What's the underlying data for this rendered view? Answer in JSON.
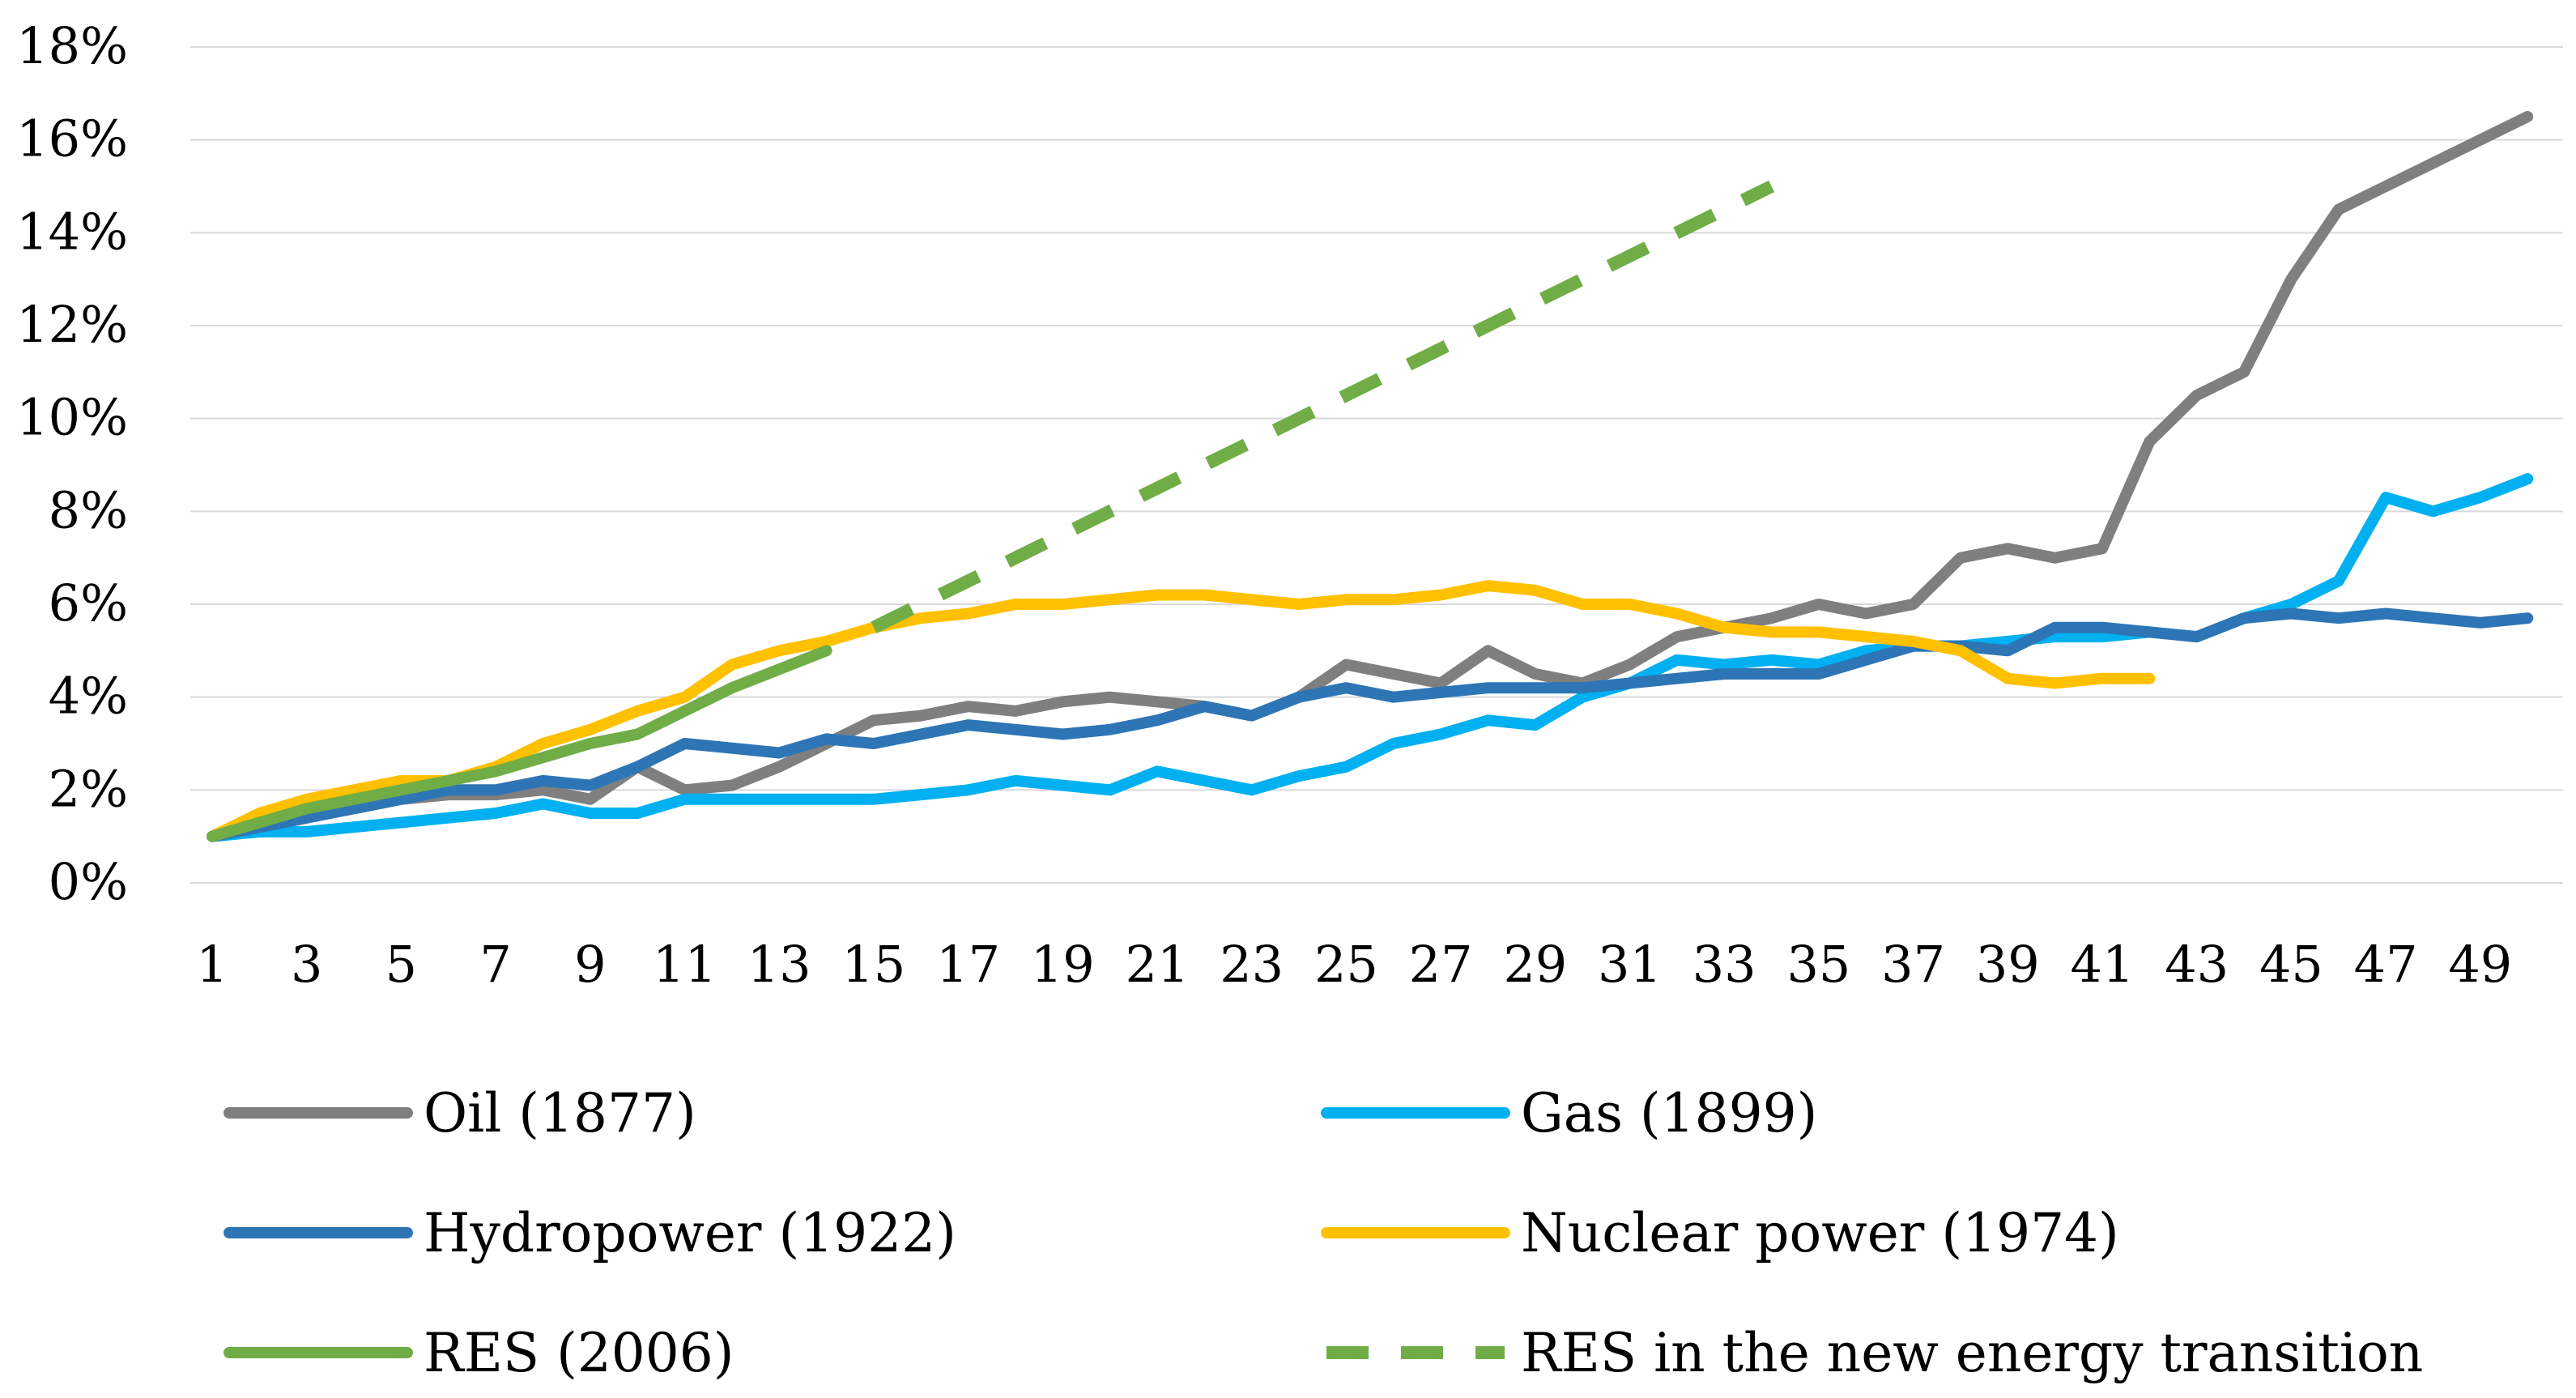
{
  "chart_data": {
    "type": "line",
    "title": "",
    "xlabel": "",
    "ylabel": "",
    "x": [
      1,
      2,
      3,
      4,
      5,
      6,
      7,
      8,
      9,
      10,
      11,
      12,
      13,
      14,
      15,
      16,
      17,
      18,
      19,
      20,
      21,
      22,
      23,
      24,
      25,
      26,
      27,
      28,
      29,
      30,
      31,
      32,
      33,
      34,
      35,
      36,
      37,
      38,
      39,
      40,
      41,
      42,
      43,
      44,
      45,
      46,
      47,
      48,
      49,
      50
    ],
    "x_tick_labels": [
      "1",
      "3",
      "5",
      "7",
      "9",
      "11",
      "13",
      "15",
      "17",
      "19",
      "21",
      "23",
      "25",
      "27",
      "29",
      "31",
      "33",
      "35",
      "37",
      "39",
      "41",
      "43",
      "45",
      "47",
      "49"
    ],
    "y_tick_labels": [
      "0%",
      "2%",
      "4%",
      "6%",
      "8%",
      "10%",
      "12%",
      "14%",
      "16%",
      "18%"
    ],
    "ylim": [
      0,
      18
    ],
    "y_unit": "%",
    "grid": true,
    "legend_position": "bottom",
    "series": [
      {
        "name": "Oil (1877)",
        "color": "#7f7f7f",
        "dash": false,
        "values": [
          1.0,
          1.2,
          1.4,
          1.6,
          1.8,
          1.9,
          1.9,
          2.0,
          1.8,
          2.5,
          2.0,
          2.1,
          2.5,
          3.0,
          3.5,
          3.6,
          3.8,
          3.7,
          3.9,
          4.0,
          3.9,
          3.8,
          3.6,
          4.0,
          4.7,
          4.5,
          4.3,
          5.0,
          4.5,
          4.3,
          4.7,
          5.3,
          5.5,
          5.7,
          6.0,
          5.8,
          6.0,
          7.0,
          7.2,
          7.0,
          7.2,
          9.5,
          10.5,
          11.0,
          13.0,
          14.5,
          15.0,
          15.5,
          16.0,
          16.5
        ]
      },
      {
        "name": "Gas (1899)",
        "color": "#00b0f0",
        "dash": false,
        "values": [
          1.0,
          1.1,
          1.1,
          1.2,
          1.3,
          1.4,
          1.5,
          1.7,
          1.5,
          1.5,
          1.8,
          1.8,
          1.8,
          1.8,
          1.8,
          1.9,
          2.0,
          2.2,
          2.1,
          2.0,
          2.4,
          2.2,
          2.0,
          2.3,
          2.5,
          3.0,
          3.2,
          3.5,
          3.4,
          4.0,
          4.3,
          4.8,
          4.7,
          4.8,
          4.7,
          5.0,
          5.1,
          5.1,
          5.2,
          5.3,
          5.3,
          5.4,
          5.3,
          5.7,
          6.0,
          6.5,
          8.3,
          8.0,
          8.3,
          8.7
        ]
      },
      {
        "name": "Hydropower (1922)",
        "color": "#2e75b6",
        "dash": false,
        "values": [
          1.0,
          1.2,
          1.4,
          1.6,
          1.8,
          2.0,
          2.0,
          2.2,
          2.1,
          2.5,
          3.0,
          2.9,
          2.8,
          3.1,
          3.0,
          3.2,
          3.4,
          3.3,
          3.2,
          3.3,
          3.5,
          3.8,
          3.6,
          4.0,
          4.2,
          4.0,
          4.1,
          4.2,
          4.2,
          4.2,
          4.3,
          4.4,
          4.5,
          4.5,
          4.5,
          4.8,
          5.1,
          5.1,
          5.0,
          5.5,
          5.5,
          5.4,
          5.3,
          5.7,
          5.8,
          5.7,
          5.8,
          5.7,
          5.6,
          5.7
        ]
      },
      {
        "name": "Nuclear power (1974)",
        "color": "#ffc000",
        "dash": false,
        "values": [
          1.0,
          1.5,
          1.8,
          2.0,
          2.2,
          2.2,
          2.5,
          3.0,
          3.3,
          3.7,
          4.0,
          4.7,
          5.0,
          5.2,
          5.5,
          5.7,
          5.8,
          6.0,
          6.0,
          6.1,
          6.2,
          6.2,
          6.1,
          6.0,
          6.1,
          6.1,
          6.2,
          6.4,
          6.3,
          6.0,
          6.0,
          5.8,
          5.5,
          5.4,
          5.4,
          5.3,
          5.2,
          5.0,
          4.4,
          4.3,
          4.4,
          4.4,
          null,
          null,
          null,
          null,
          null,
          null,
          null,
          null
        ]
      },
      {
        "name": "RES (2006)",
        "color": "#70ad47",
        "dash": false,
        "values": [
          1.0,
          1.3,
          1.6,
          1.8,
          2.0,
          2.2,
          2.4,
          2.7,
          3.0,
          3.2,
          3.7,
          4.2,
          4.6,
          5.0,
          null,
          null,
          null,
          null,
          null,
          null,
          null,
          null,
          null,
          null,
          null,
          null,
          null,
          null,
          null,
          null,
          null,
          null,
          null,
          null,
          null,
          null,
          null,
          null,
          null,
          null,
          null,
          null,
          null,
          null,
          null,
          null,
          null,
          null,
          null,
          null
        ]
      },
      {
        "name": "RES in the new energy transition",
        "color": "#70ad47",
        "dash": true,
        "values": [
          null,
          null,
          null,
          null,
          null,
          null,
          null,
          null,
          null,
          null,
          null,
          null,
          null,
          null,
          5.5,
          6.0,
          6.5,
          7.0,
          7.5,
          8.0,
          8.5,
          9.0,
          9.5,
          10.0,
          10.5,
          11.0,
          11.5,
          12.0,
          12.5,
          13.0,
          13.5,
          14.0,
          14.5,
          15.0,
          null,
          null,
          null,
          null,
          null,
          null,
          null,
          null,
          null,
          null,
          null,
          null,
          null,
          null,
          null,
          null
        ]
      }
    ]
  }
}
